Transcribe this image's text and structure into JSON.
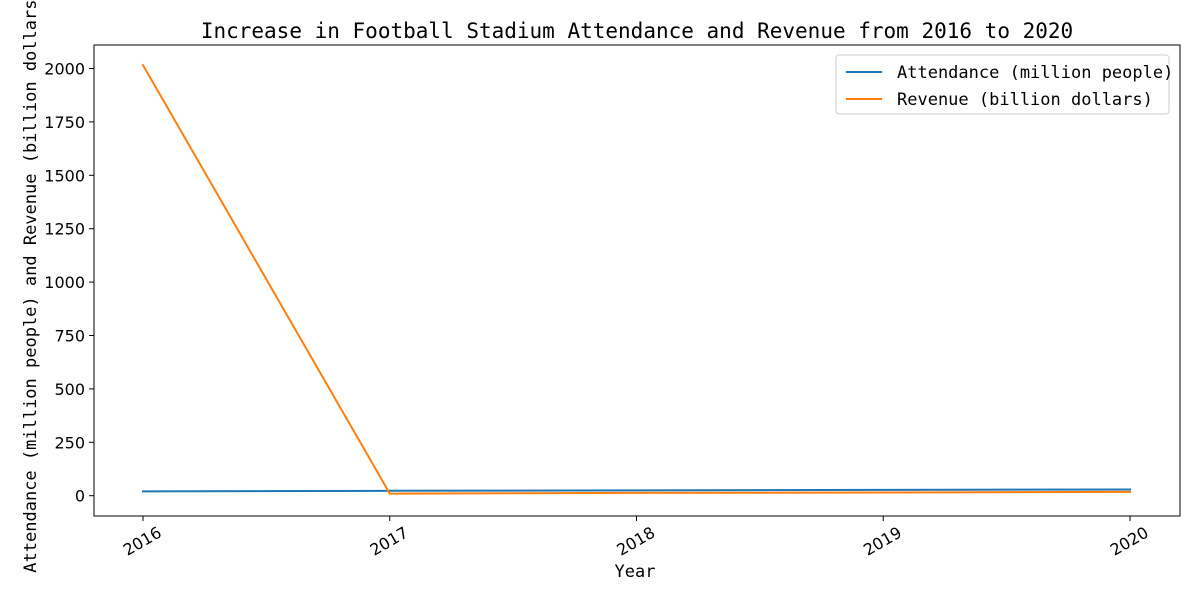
{
  "chart_data": {
    "type": "line",
    "title": "Increase in Football Stadium Attendance and Revenue from 2016 to 2020",
    "xlabel": "Year",
    "ylabel": "Attendance (million people) and Revenue (billion dollars)",
    "categories": [
      "2016",
      "2017",
      "2018",
      "2019",
      "2020"
    ],
    "x_tick_labels": [
      "2016",
      "2017",
      "2018",
      "2019",
      "2020"
    ],
    "y_ticks": [
      0,
      250,
      500,
      750,
      1000,
      1250,
      1500,
      1750,
      2000
    ],
    "y_tick_labels": [
      "0",
      "250",
      "500",
      "750",
      "1000",
      "1250",
      "1500",
      "1750",
      "2000"
    ],
    "ylim": [
      -95,
      2110
    ],
    "grid": false,
    "legend_position": "top-right",
    "series": [
      {
        "name": "Attendance (million people)",
        "color": "#1f77b4",
        "values": [
          20,
          23,
          25,
          27,
          29
        ]
      },
      {
        "name": "Revenue (billion dollars)",
        "color": "#ff7f0e",
        "values": [
          2016,
          10,
          13,
          15,
          18
        ]
      }
    ]
  }
}
